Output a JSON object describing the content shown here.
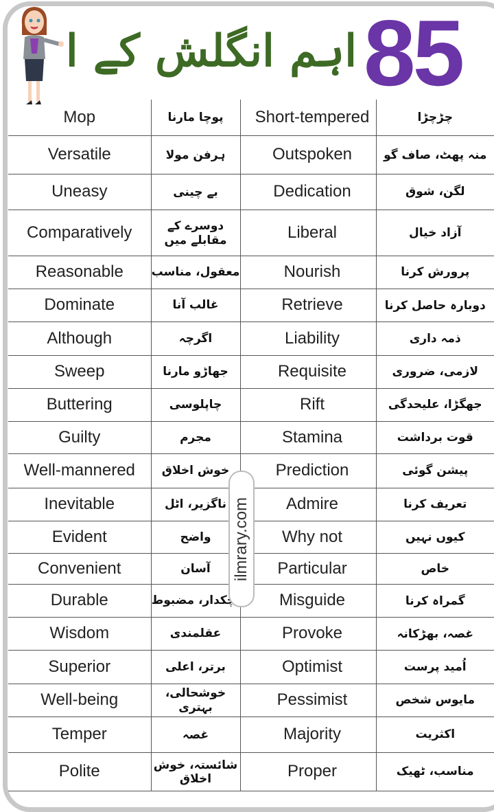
{
  "header": {
    "title_urdu": "اہم انگلش کے الفاظ",
    "count": "85"
  },
  "watermark": "ilmrary.com",
  "rows": [
    {
      "en1": "Mop",
      "ur1": "پوچا مارنا",
      "en2": "Short-tempered",
      "ur2": "چڑچڑا"
    },
    {
      "en1": "Versatile",
      "ur1": "ہرفن مولا",
      "en2": "Outspoken",
      "ur2": "منہ پھٹ، صاف گو"
    },
    {
      "en1": "Uneasy",
      "ur1": "بے چینی",
      "en2": "Dedication",
      "ur2": "لگن، شوق"
    },
    {
      "en1": "Comparatively",
      "ur1": "دوسرے کے مقابلے میں",
      "en2": "Liberal",
      "ur2": "آزاد خیال"
    },
    {
      "en1": "Reasonable",
      "ur1": "معقول، مناسب",
      "en2": "Nourish",
      "ur2": "پرورش کرنا"
    },
    {
      "en1": "Dominate",
      "ur1": "غالب آنا",
      "en2": "Retrieve",
      "ur2": "دوبارہ حاصل کرنا"
    },
    {
      "en1": "Although",
      "ur1": "اگرچہ",
      "en2": "Liability",
      "ur2": "ذمہ داری"
    },
    {
      "en1": "Sweep",
      "ur1": "جھاڑو مارنا",
      "en2": "Requisite",
      "ur2": "لازمی، ضروری"
    },
    {
      "en1": "Buttering",
      "ur1": "چاپلوسی",
      "en2": "Rift",
      "ur2": "جھگڑا، علیحدگی"
    },
    {
      "en1": "Guilty",
      "ur1": "مجرم",
      "en2": "Stamina",
      "ur2": "قوت برداشت"
    },
    {
      "en1": "Well-mannered",
      "ur1": "خوش اخلاق",
      "en2": "Prediction",
      "ur2": "پیشن گوئی"
    },
    {
      "en1": "Inevitable",
      "ur1": "ناگزیر، اٹل",
      "en2": "Admire",
      "ur2": "تعریف کرنا"
    },
    {
      "en1": "Evident",
      "ur1": "واضح",
      "en2": "Why not",
      "ur2": "کیوں نہیں"
    },
    {
      "en1": "Convenient",
      "ur1": "آسان",
      "en2": "Particular",
      "ur2": "خاص"
    },
    {
      "en1": "Durable",
      "ur1": "لچکدار، مضبوط",
      "en2": "Misguide",
      "ur2": "گمراہ کرنا"
    },
    {
      "en1": "Wisdom",
      "ur1": "عقلمندی",
      "en2": "Provoke",
      "ur2": "غصہ، بھڑکانہ"
    },
    {
      "en1": "Superior",
      "ur1": "برتر، اعلی",
      "en2": "Optimist",
      "ur2": "اُمید پرست"
    },
    {
      "en1": "Well-being",
      "ur1": "خوشحالی، بہتری",
      "en2": "Pessimist",
      "ur2": "مایوس شخص"
    },
    {
      "en1": "Temper",
      "ur1": "غصہ",
      "en2": "Majority",
      "ur2": "اکثریت"
    },
    {
      "en1": "Polite",
      "ur1": "شائستہ، خوش اخلاق",
      "en2": "Proper",
      "ur2": "مناسب، ٹھیک"
    }
  ]
}
